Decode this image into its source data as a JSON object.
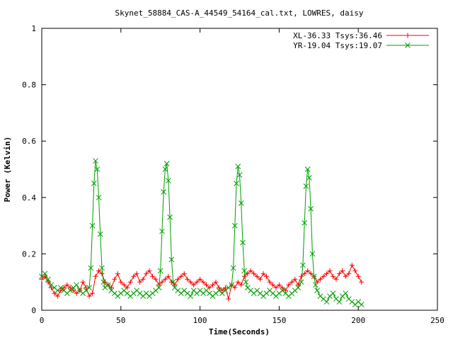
{
  "chart_data": {
    "type": "scatter",
    "title": "Skynet_58884_CAS-A_44549_54164_cal.txt, LOWRES, daisy",
    "xlabel": "Time(Seconds)",
    "ylabel": "Power (Kelvin)",
    "xlim": [
      0,
      250
    ],
    "ylim": [
      0,
      1
    ],
    "xticks": [
      0,
      50,
      100,
      150,
      200,
      250
    ],
    "yticks": [
      0,
      0.2,
      0.4,
      0.6,
      0.8,
      1
    ],
    "ytick_labels": [
      "0",
      "0.2",
      "0.4",
      "0.6",
      "0.8",
      "1"
    ],
    "grid": false,
    "legend_position": "top-right",
    "series": [
      {
        "name": "XL-36.33 Tsys:36.46",
        "color": "#ff0000",
        "marker": "plus",
        "x": [
          0,
          2,
          4,
          6,
          8,
          10,
          12,
          14,
          16,
          18,
          20,
          22,
          24,
          26,
          28,
          30,
          32,
          34,
          36,
          38,
          40,
          42,
          44,
          46,
          48,
          50,
          52,
          54,
          56,
          58,
          60,
          62,
          64,
          66,
          68,
          70,
          72,
          74,
          76,
          78,
          80,
          82,
          84,
          86,
          88,
          90,
          92,
          94,
          96,
          98,
          100,
          102,
          104,
          106,
          108,
          110,
          112,
          114,
          116,
          118,
          120,
          122,
          124,
          126,
          128,
          130,
          132,
          134,
          136,
          138,
          140,
          142,
          144,
          146,
          148,
          150,
          152,
          154,
          156,
          158,
          160,
          162,
          164,
          166,
          168,
          170,
          172,
          174,
          176,
          178,
          180,
          182,
          184,
          186,
          188,
          190,
          192,
          194,
          196,
          198,
          200,
          202
        ],
        "y": [
          0.11,
          0.12,
          0.1,
          0.08,
          0.06,
          0.05,
          0.07,
          0.08,
          0.09,
          0.08,
          0.07,
          0.06,
          0.07,
          0.1,
          0.08,
          0.05,
          0.06,
          0.12,
          0.14,
          0.13,
          0.1,
          0.09,
          0.08,
          0.11,
          0.13,
          0.1,
          0.09,
          0.08,
          0.1,
          0.12,
          0.13,
          0.1,
          0.11,
          0.13,
          0.14,
          0.12,
          0.11,
          0.09,
          0.1,
          0.11,
          0.12,
          0.1,
          0.09,
          0.11,
          0.12,
          0.13,
          0.11,
          0.1,
          0.09,
          0.1,
          0.11,
          0.1,
          0.09,
          0.08,
          0.09,
          0.1,
          0.08,
          0.07,
          0.08,
          0.04,
          0.09,
          0.08,
          0.1,
          0.09,
          0.12,
          0.13,
          0.14,
          0.13,
          0.12,
          0.11,
          0.13,
          0.12,
          0.1,
          0.09,
          0.08,
          0.09,
          0.08,
          0.07,
          0.09,
          0.1,
          0.11,
          0.09,
          0.12,
          0.13,
          0.14,
          0.13,
          0.12,
          0.1,
          0.11,
          0.12,
          0.13,
          0.14,
          0.12,
          0.11,
          0.13,
          0.14,
          0.12,
          0.13,
          0.16,
          0.14,
          0.12,
          0.1
        ]
      },
      {
        "name": "YR-19.04 Tsys:19.07",
        "color": "#00a000",
        "marker": "cross",
        "x": [
          0,
          2,
          4,
          6,
          8,
          10,
          12,
          14,
          16,
          18,
          20,
          22,
          24,
          26,
          28,
          30,
          31,
          32,
          33,
          34,
          35,
          36,
          37,
          38,
          39,
          40,
          42,
          44,
          46,
          48,
          50,
          52,
          54,
          56,
          58,
          60,
          62,
          64,
          66,
          68,
          70,
          72,
          74,
          75,
          76,
          77,
          78,
          79,
          80,
          81,
          82,
          83,
          84,
          86,
          88,
          90,
          92,
          94,
          96,
          98,
          100,
          102,
          104,
          106,
          108,
          110,
          112,
          114,
          116,
          118,
          120,
          121,
          122,
          123,
          124,
          125,
          126,
          127,
          128,
          129,
          130,
          132,
          134,
          136,
          138,
          140,
          142,
          144,
          146,
          148,
          150,
          152,
          154,
          156,
          158,
          160,
          162,
          164,
          165,
          166,
          167,
          168,
          169,
          170,
          171,
          172,
          173,
          174,
          176,
          178,
          180,
          182,
          184,
          186,
          188,
          190,
          192,
          194,
          196,
          198,
          200,
          202
        ],
        "y": [
          0.12,
          0.13,
          0.11,
          0.09,
          0.08,
          0.07,
          0.08,
          0.07,
          0.06,
          0.07,
          0.08,
          0.09,
          0.07,
          0.06,
          0.07,
          0.08,
          0.15,
          0.3,
          0.45,
          0.53,
          0.5,
          0.4,
          0.27,
          0.15,
          0.1,
          0.08,
          0.09,
          0.07,
          0.06,
          0.05,
          0.06,
          0.07,
          0.06,
          0.05,
          0.06,
          0.07,
          0.06,
          0.05,
          0.06,
          0.05,
          0.06,
          0.07,
          0.08,
          0.14,
          0.28,
          0.42,
          0.5,
          0.52,
          0.46,
          0.33,
          0.18,
          0.1,
          0.08,
          0.07,
          0.06,
          0.07,
          0.06,
          0.05,
          0.07,
          0.06,
          0.07,
          0.06,
          0.07,
          0.06,
          0.05,
          0.06,
          0.07,
          0.06,
          0.07,
          0.08,
          0.09,
          0.15,
          0.3,
          0.45,
          0.51,
          0.48,
          0.38,
          0.24,
          0.14,
          0.1,
          0.08,
          0.07,
          0.06,
          0.07,
          0.06,
          0.05,
          0.06,
          0.07,
          0.06,
          0.05,
          0.06,
          0.07,
          0.06,
          0.05,
          0.06,
          0.07,
          0.08,
          0.1,
          0.16,
          0.31,
          0.44,
          0.5,
          0.47,
          0.36,
          0.2,
          0.12,
          0.09,
          0.07,
          0.05,
          0.04,
          0.03,
          0.05,
          0.06,
          0.04,
          0.03,
          0.05,
          0.06,
          0.04,
          0.03,
          0.02,
          0.03,
          0.02
        ]
      }
    ]
  }
}
